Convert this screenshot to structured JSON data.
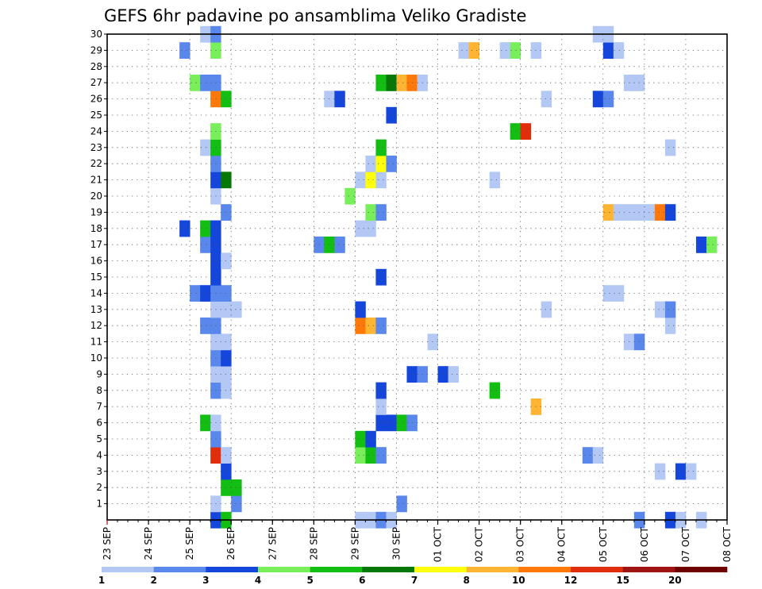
{
  "chart_data": {
    "type": "heatmap",
    "title": "GEFS 6hr padavine po ansamblima Veliko Gradiste",
    "x_labels": [
      "23 SEP",
      "24 SEP",
      "25 SEP",
      "26 SEP",
      "27 SEP",
      "28 SEP",
      "29 SEP",
      "30 SEP",
      "01 OCT",
      "02 OCT",
      "03 OCT",
      "04 OCT",
      "05 OCT",
      "06 OCT",
      "07 OCT",
      "08 OCT"
    ],
    "y_labels": [
      "1",
      "2",
      "3",
      "4",
      "5",
      "6",
      "7",
      "8",
      "9",
      "10",
      "11",
      "12",
      "13",
      "14",
      "15",
      "16",
      "17",
      "18",
      "19",
      "20",
      "21",
      "22",
      "23",
      "24",
      "25",
      "26",
      "27",
      "28",
      "29",
      "30"
    ],
    "y_range": [
      0,
      30
    ],
    "x_steps_per_day": 4,
    "grid": true,
    "colorbar": {
      "ticks": [
        "1",
        "2",
        "3",
        "4",
        "5",
        "6",
        "7",
        "8",
        "10",
        "12",
        "15",
        "20"
      ],
      "colors": [
        "#b4c8f5",
        "#5a87ec",
        "#1446dc",
        "#78ee5a",
        "#12be12",
        "#057805",
        "#ffff0a",
        "#ffb432",
        "#ff780a",
        "#e12d0a",
        "#a01414",
        "#6e0000"
      ]
    },
    "cells": [
      [
        0,
        10,
        3
      ],
      [
        0,
        11,
        5
      ],
      [
        0,
        24,
        1
      ],
      [
        0,
        25,
        1
      ],
      [
        0,
        26,
        2
      ],
      [
        0,
        27,
        1
      ],
      [
        0,
        51,
        2
      ],
      [
        0,
        54,
        3
      ],
      [
        0,
        55,
        1
      ],
      [
        0,
        57,
        1
      ],
      [
        1,
        10,
        1
      ],
      [
        1,
        12,
        2
      ],
      [
        1,
        28,
        2
      ],
      [
        2,
        11,
        5
      ],
      [
        2,
        12,
        5
      ],
      [
        3,
        11,
        3
      ],
      [
        3,
        53,
        1
      ],
      [
        3,
        55,
        3
      ],
      [
        3,
        56,
        1
      ],
      [
        4,
        10,
        10
      ],
      [
        4,
        11,
        1
      ],
      [
        4,
        24,
        4
      ],
      [
        4,
        25,
        5
      ],
      [
        4,
        26,
        2
      ],
      [
        4,
        46,
        2
      ],
      [
        4,
        47,
        1
      ],
      [
        5,
        10,
        2
      ],
      [
        5,
        24,
        5
      ],
      [
        5,
        25,
        3
      ],
      [
        6,
        9,
        5
      ],
      [
        6,
        10,
        1
      ],
      [
        6,
        26,
        3
      ],
      [
        6,
        27,
        3
      ],
      [
        6,
        28,
        5
      ],
      [
        6,
        29,
        2
      ],
      [
        7,
        26,
        1
      ],
      [
        7,
        41,
        8
      ],
      [
        8,
        10,
        2
      ],
      [
        8,
        11,
        1
      ],
      [
        8,
        26,
        3
      ],
      [
        8,
        37,
        5
      ],
      [
        9,
        10,
        1
      ],
      [
        9,
        11,
        1
      ],
      [
        9,
        29,
        3
      ],
      [
        9,
        30,
        2
      ],
      [
        9,
        32,
        3
      ],
      [
        9,
        33,
        1
      ],
      [
        10,
        10,
        2
      ],
      [
        10,
        11,
        3
      ],
      [
        11,
        10,
        1
      ],
      [
        11,
        11,
        1
      ],
      [
        11,
        31,
        1
      ],
      [
        11,
        50,
        1
      ],
      [
        11,
        51,
        2
      ],
      [
        12,
        9,
        2
      ],
      [
        12,
        10,
        2
      ],
      [
        12,
        24,
        9
      ],
      [
        12,
        25,
        8
      ],
      [
        12,
        26,
        2
      ],
      [
        12,
        54,
        1
      ],
      [
        13,
        10,
        1
      ],
      [
        13,
        11,
        1
      ],
      [
        13,
        12,
        1
      ],
      [
        13,
        24,
        3
      ],
      [
        13,
        42,
        1
      ],
      [
        13,
        53,
        1
      ],
      [
        13,
        54,
        2
      ],
      [
        14,
        8,
        2
      ],
      [
        14,
        9,
        3
      ],
      [
        14,
        10,
        2
      ],
      [
        14,
        11,
        2
      ],
      [
        14,
        48,
        1
      ],
      [
        14,
        49,
        1
      ],
      [
        15,
        10,
        3
      ],
      [
        15,
        26,
        3
      ],
      [
        16,
        10,
        3
      ],
      [
        16,
        11,
        1
      ],
      [
        17,
        9,
        2
      ],
      [
        17,
        10,
        3
      ],
      [
        17,
        20,
        2
      ],
      [
        17,
        21,
        5
      ],
      [
        17,
        22,
        2
      ],
      [
        17,
        57,
        3
      ],
      [
        17,
        58,
        4
      ],
      [
        18,
        7,
        3
      ],
      [
        18,
        9,
        5
      ],
      [
        18,
        10,
        3
      ],
      [
        18,
        24,
        1
      ],
      [
        18,
        25,
        1
      ],
      [
        19,
        11,
        2
      ],
      [
        19,
        25,
        4
      ],
      [
        19,
        26,
        2
      ],
      [
        19,
        48,
        8
      ],
      [
        19,
        49,
        1
      ],
      [
        19,
        50,
        1
      ],
      [
        19,
        51,
        1
      ],
      [
        19,
        52,
        1
      ],
      [
        19,
        53,
        9
      ],
      [
        19,
        54,
        3
      ],
      [
        20,
        10,
        1
      ],
      [
        20,
        23,
        4
      ],
      [
        21,
        10,
        3
      ],
      [
        21,
        11,
        6
      ],
      [
        21,
        24,
        1
      ],
      [
        21,
        25,
        7
      ],
      [
        21,
        26,
        1
      ],
      [
        21,
        37,
        1
      ],
      [
        22,
        10,
        2
      ],
      [
        22,
        25,
        1
      ],
      [
        22,
        26,
        7
      ],
      [
        22,
        27,
        2
      ],
      [
        23,
        9,
        1
      ],
      [
        23,
        10,
        5
      ],
      [
        23,
        26,
        5
      ],
      [
        23,
        54,
        1
      ],
      [
        24,
        10,
        4
      ],
      [
        24,
        39,
        5
      ],
      [
        24,
        40,
        10
      ],
      [
        25,
        27,
        3
      ],
      [
        26,
        10,
        9
      ],
      [
        26,
        11,
        5
      ],
      [
        26,
        21,
        1
      ],
      [
        26,
        22,
        3
      ],
      [
        26,
        42,
        1
      ],
      [
        26,
        47,
        3
      ],
      [
        26,
        48,
        2
      ],
      [
        27,
        8,
        4
      ],
      [
        27,
        9,
        2
      ],
      [
        27,
        10,
        2
      ],
      [
        27,
        26,
        5
      ],
      [
        27,
        27,
        6
      ],
      [
        27,
        28,
        8
      ],
      [
        27,
        29,
        9
      ],
      [
        27,
        30,
        1
      ],
      [
        27,
        50,
        1
      ],
      [
        27,
        51,
        1
      ],
      [
        29,
        7,
        2
      ],
      [
        29,
        10,
        4
      ],
      [
        29,
        34,
        1
      ],
      [
        29,
        35,
        8
      ],
      [
        29,
        38,
        1
      ],
      [
        29,
        39,
        4
      ],
      [
        29,
        41,
        1
      ],
      [
        29,
        48,
        3
      ],
      [
        29,
        49,
        1
      ],
      [
        30,
        9,
        1
      ],
      [
        30,
        10,
        2
      ],
      [
        30,
        47,
        1
      ],
      [
        30,
        48,
        1
      ]
    ]
  }
}
